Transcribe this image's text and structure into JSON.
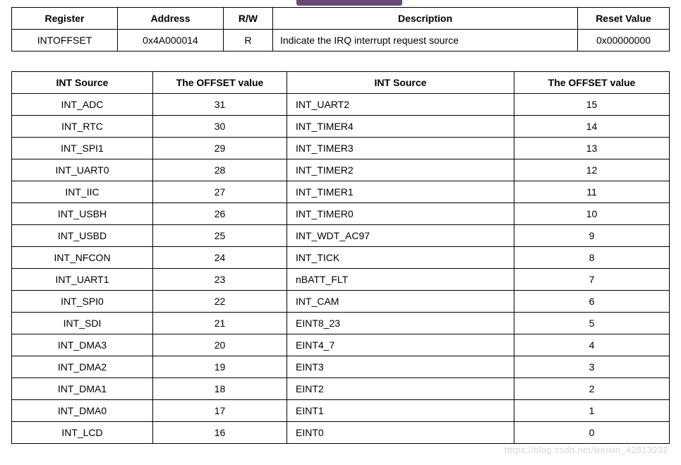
{
  "register_table": {
    "headers": [
      "Register",
      "Address",
      "R/W",
      "Description",
      "Reset Value"
    ],
    "row": {
      "register": "INTOFFSET",
      "address": "0x4A000014",
      "rw": "R",
      "description": "Indicate the IRQ interrupt request source",
      "reset_value": "0x00000000"
    }
  },
  "offset_table": {
    "headers": [
      "INT Source",
      "The OFFSET value",
      "INT Source",
      "The OFFSET value"
    ],
    "rows": [
      {
        "src1": "INT_ADC",
        "off1": "31",
        "src2": "INT_UART2",
        "off2": "15"
      },
      {
        "src1": "INT_RTC",
        "off1": "30",
        "src2": "INT_TIMER4",
        "off2": "14"
      },
      {
        "src1": "INT_SPI1",
        "off1": "29",
        "src2": "INT_TIMER3",
        "off2": "13"
      },
      {
        "src1": "INT_UART0",
        "off1": "28",
        "src2": "INT_TIMER2",
        "off2": "12"
      },
      {
        "src1": "INT_IIC",
        "off1": "27",
        "src2": "INT_TIMER1",
        "off2": "11"
      },
      {
        "src1": "INT_USBH",
        "off1": "26",
        "src2": "INT_TIMER0",
        "off2": "10"
      },
      {
        "src1": "INT_USBD",
        "off1": "25",
        "src2": "INT_WDT_AC97",
        "off2": "9"
      },
      {
        "src1": "INT_NFCON",
        "off1": "24",
        "src2": "INT_TICK",
        "off2": "8"
      },
      {
        "src1": "INT_UART1",
        "off1": "23",
        "src2": "nBATT_FLT",
        "off2": "7"
      },
      {
        "src1": "INT_SPI0",
        "off1": "22",
        "src2": "INT_CAM",
        "off2": "6"
      },
      {
        "src1": "INT_SDI",
        "off1": "21",
        "src2": "EINT8_23",
        "off2": "5"
      },
      {
        "src1": "INT_DMA3",
        "off1": "20",
        "src2": "EINT4_7",
        "off2": "4"
      },
      {
        "src1": "INT_DMA2",
        "off1": "19",
        "src2": "EINT3",
        "off2": "3"
      },
      {
        "src1": "INT_DMA1",
        "off1": "18",
        "src2": "EINT2",
        "off2": "2"
      },
      {
        "src1": "INT_DMA0",
        "off1": "17",
        "src2": "EINT1",
        "off2": "1"
      },
      {
        "src1": "INT_LCD",
        "off1": "16",
        "src2": "EINT0",
        "off2": "0"
      }
    ]
  },
  "watermark": "https://blog.csdn.net/weixin_42813232"
}
